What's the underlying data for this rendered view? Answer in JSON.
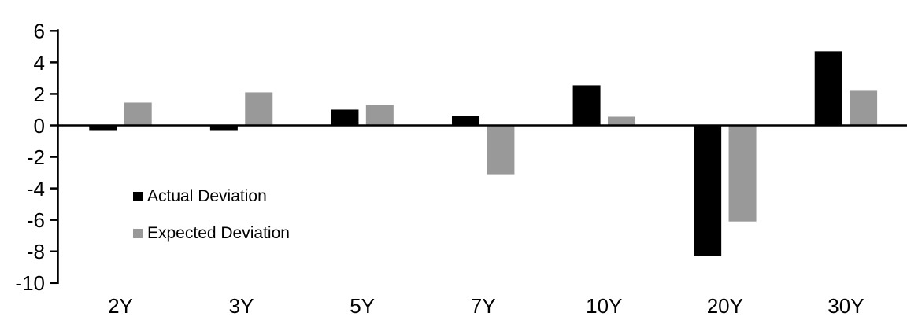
{
  "chart_data": {
    "type": "bar",
    "title": "",
    "categories": [
      "2Y",
      "3Y",
      "5Y",
      "7Y",
      "10Y",
      "20Y",
      "30Y"
    ],
    "series": [
      {
        "name": "Actual Deviation",
        "color": "#000000",
        "values": [
          -0.3,
          -0.3,
          1.0,
          0.6,
          2.55,
          -8.3,
          4.7
        ]
      },
      {
        "name": "Expected Deviation",
        "color": "#999999",
        "values": [
          1.45,
          2.1,
          1.3,
          -3.1,
          0.55,
          -6.1,
          2.2
        ]
      }
    ],
    "y_ticks": [
      6,
      4,
      2,
      0,
      -2,
      -4,
      -6,
      -8,
      -10
    ],
    "ylim": [
      -10,
      6
    ],
    "xlabel": "",
    "ylabel": "",
    "grid": false,
    "legend_position": "inside-left",
    "axis_color": "#000000",
    "background": "#ffffff"
  }
}
